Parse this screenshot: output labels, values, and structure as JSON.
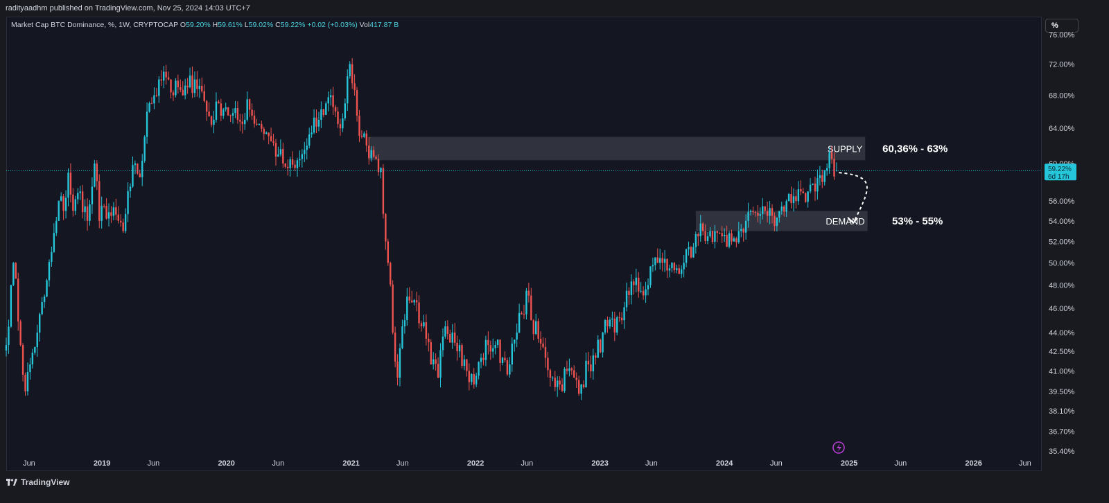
{
  "header": {
    "publisher_line": "radityaadhm published on TradingView.com, Nov 25, 2024 14:03 UTC+7",
    "symbol": "Market Cap BTC Dominance, %, 1W, CRYPTOCAP",
    "open_label": "O",
    "open": "59.20%",
    "high_label": "H",
    "high": "59.61%",
    "low_label": "L",
    "low": "59.02%",
    "close_label": "C",
    "close": "59.22%",
    "change": "+0.02 (+0.03%)",
    "vol_label": "Vol",
    "vol": "417.87 B"
  },
  "scale_button": "%",
  "footer": {
    "logo_text": "TradingView"
  },
  "colors": {
    "up": "#26c6da",
    "down": "#ef5350",
    "background": "#141722",
    "zone": "#3a3d48",
    "price_line": "#26c6da"
  },
  "chart_data": {
    "type": "candlestick",
    "title": "Market Cap BTC Dominance, %, 1W, CRYPTOCAP",
    "y_ticks": [
      "76.00%",
      "72.00%",
      "68.00%",
      "64.00%",
      "60.00%",
      "56.00%",
      "54.00%",
      "52.00%",
      "50.00%",
      "48.00%",
      "46.00%",
      "44.00%",
      "42.50%",
      "41.00%",
      "39.50%",
      "38.10%",
      "36.70%",
      "35.40%"
    ],
    "y_scale": "log",
    "ylim": [
      35.4,
      76.0
    ],
    "x_ticks": [
      {
        "label": "Jun",
        "date": "2018-06-01",
        "bold": false
      },
      {
        "label": "2019",
        "date": "2019-01-01",
        "bold": true
      },
      {
        "label": "Jun",
        "date": "2019-06-01",
        "bold": false
      },
      {
        "label": "2020",
        "date": "2020-01-01",
        "bold": true
      },
      {
        "label": "Jun",
        "date": "2020-06-01",
        "bold": false
      },
      {
        "label": "2021",
        "date": "2021-01-01",
        "bold": true
      },
      {
        "label": "Jun",
        "date": "2021-06-01",
        "bold": false
      },
      {
        "label": "2022",
        "date": "2022-01-01",
        "bold": true
      },
      {
        "label": "Jun",
        "date": "2022-06-01",
        "bold": false
      },
      {
        "label": "2023",
        "date": "2023-01-01",
        "bold": true
      },
      {
        "label": "Jun",
        "date": "2023-06-01",
        "bold": false
      },
      {
        "label": "2024",
        "date": "2024-01-01",
        "bold": true
      },
      {
        "label": "Jun",
        "date": "2024-06-01",
        "bold": false
      },
      {
        "label": "2025",
        "date": "2025-01-01",
        "bold": true
      },
      {
        "label": "Jun",
        "date": "2025-06-01",
        "bold": false
      },
      {
        "label": "2026",
        "date": "2026-01-01",
        "bold": true
      },
      {
        "label": "Jun",
        "date": "2026-06-01",
        "bold": false
      }
    ],
    "xlim": [
      "2018-03-26",
      "2026-07-20"
    ],
    "series": [
      {
        "interval": "1W",
        "points": [
          [
            "2018-03-26",
            43.0
          ],
          [
            "2018-04-09",
            48.0
          ],
          [
            "2018-04-16",
            50.0
          ],
          [
            "2018-05-07",
            43.0
          ],
          [
            "2018-05-21",
            39.5
          ],
          [
            "2018-06-04",
            41.5
          ],
          [
            "2018-06-25",
            44.0
          ],
          [
            "2018-07-16",
            47.0
          ],
          [
            "2018-08-06",
            51.0
          ],
          [
            "2018-08-20",
            54.0
          ],
          [
            "2018-09-03",
            56.5
          ],
          [
            "2018-09-10",
            55.0
          ],
          [
            "2018-09-24",
            59.0
          ],
          [
            "2018-10-08",
            55.0
          ],
          [
            "2018-10-29",
            57.0
          ],
          [
            "2018-11-19",
            54.0
          ],
          [
            "2018-12-03",
            57.5
          ],
          [
            "2018-12-10",
            60.0
          ],
          [
            "2018-12-24",
            54.0
          ],
          [
            "2019-01-07",
            55.5
          ],
          [
            "2019-01-28",
            54.5
          ],
          [
            "2019-02-18",
            54.0
          ],
          [
            "2019-03-04",
            53.0
          ],
          [
            "2019-03-25",
            57.5
          ],
          [
            "2019-04-08",
            60.0
          ],
          [
            "2019-04-22",
            58.5
          ],
          [
            "2019-05-06",
            63.0
          ],
          [
            "2019-05-20",
            67.0
          ],
          [
            "2019-06-03",
            68.0
          ],
          [
            "2019-06-17",
            70.0
          ],
          [
            "2019-07-01",
            71.0
          ],
          [
            "2019-07-15",
            70.0
          ],
          [
            "2019-07-29",
            68.0
          ],
          [
            "2019-08-12",
            69.0
          ],
          [
            "2019-08-26",
            68.0
          ],
          [
            "2019-09-09",
            69.0
          ],
          [
            "2019-09-30",
            70.0
          ],
          [
            "2019-10-21",
            68.5
          ],
          [
            "2019-11-04",
            66.0
          ],
          [
            "2019-11-25",
            65.0
          ],
          [
            "2019-12-09",
            67.0
          ],
          [
            "2019-12-30",
            66.5
          ],
          [
            "2020-01-13",
            65.5
          ],
          [
            "2020-02-03",
            65.0
          ],
          [
            "2020-02-17",
            64.5
          ],
          [
            "2020-03-02",
            67.5
          ],
          [
            "2020-03-16",
            65.5
          ],
          [
            "2020-04-06",
            64.5
          ],
          [
            "2020-04-27",
            63.5
          ],
          [
            "2020-05-11",
            62.5
          ],
          [
            "2020-06-01",
            61.0
          ],
          [
            "2020-06-15",
            60.0
          ],
          [
            "2020-06-29",
            59.5
          ],
          [
            "2020-07-20",
            59.5
          ],
          [
            "2020-08-03",
            60.5
          ],
          [
            "2020-08-24",
            62.0
          ],
          [
            "2020-09-07",
            63.5
          ],
          [
            "2020-09-28",
            65.0
          ],
          [
            "2020-10-19",
            67.0
          ],
          [
            "2020-11-02",
            68.0
          ],
          [
            "2020-11-16",
            66.0
          ],
          [
            "2020-11-30",
            64.0
          ],
          [
            "2020-12-14",
            67.0
          ],
          [
            "2020-12-28",
            72.0
          ],
          [
            "2021-01-04",
            69.5
          ],
          [
            "2021-01-18",
            65.5
          ],
          [
            "2021-02-01",
            63.0
          ],
          [
            "2021-02-15",
            62.0
          ],
          [
            "2021-03-01",
            61.5
          ],
          [
            "2021-03-15",
            60.5
          ],
          [
            "2021-03-29",
            59.5
          ],
          [
            "2021-04-12",
            52.0
          ],
          [
            "2021-04-19",
            50.0
          ],
          [
            "2021-05-03",
            44.0
          ],
          [
            "2021-05-17",
            40.5
          ],
          [
            "2021-05-31",
            44.5
          ],
          [
            "2021-06-14",
            47.0
          ],
          [
            "2021-06-28",
            46.5
          ],
          [
            "2021-07-12",
            46.5
          ],
          [
            "2021-07-26",
            44.5
          ],
          [
            "2021-08-09",
            43.5
          ],
          [
            "2021-08-23",
            41.5
          ],
          [
            "2021-09-13",
            40.5
          ],
          [
            "2021-10-04",
            44.5
          ],
          [
            "2021-10-25",
            44.0
          ],
          [
            "2021-11-15",
            43.0
          ],
          [
            "2021-12-06",
            41.0
          ],
          [
            "2021-12-27",
            40.0
          ],
          [
            "2022-01-17",
            42.0
          ],
          [
            "2022-02-07",
            43.0
          ],
          [
            "2022-02-28",
            43.0
          ],
          [
            "2022-03-21",
            42.0
          ],
          [
            "2022-04-11",
            41.5
          ],
          [
            "2022-05-02",
            44.0
          ],
          [
            "2022-05-16",
            45.5
          ],
          [
            "2022-05-30",
            47.5
          ],
          [
            "2022-06-13",
            45.0
          ],
          [
            "2022-07-04",
            43.5
          ],
          [
            "2022-07-25",
            42.0
          ],
          [
            "2022-08-15",
            40.5
          ],
          [
            "2022-09-05",
            40.0
          ],
          [
            "2022-09-26",
            41.0
          ],
          [
            "2022-10-17",
            40.5
          ],
          [
            "2022-11-07",
            40.0
          ],
          [
            "2022-11-28",
            41.5
          ],
          [
            "2022-12-19",
            42.0
          ],
          [
            "2023-01-09",
            44.0
          ],
          [
            "2023-01-23",
            44.5
          ],
          [
            "2023-02-13",
            44.0
          ],
          [
            "2023-03-06",
            45.0
          ],
          [
            "2023-03-20",
            47.5
          ],
          [
            "2023-04-10",
            48.0
          ],
          [
            "2023-05-01",
            47.5
          ],
          [
            "2023-05-22",
            48.0
          ],
          [
            "2023-06-12",
            50.5
          ],
          [
            "2023-07-03",
            50.0
          ],
          [
            "2023-07-24",
            49.5
          ],
          [
            "2023-08-14",
            49.5
          ],
          [
            "2023-09-04",
            50.0
          ],
          [
            "2023-09-25",
            50.5
          ],
          [
            "2023-10-16",
            52.5
          ],
          [
            "2023-10-30",
            53.0
          ],
          [
            "2023-11-13",
            52.5
          ],
          [
            "2023-12-04",
            53.0
          ],
          [
            "2023-12-25",
            52.5
          ],
          [
            "2024-01-08",
            51.5
          ],
          [
            "2024-01-22",
            52.0
          ],
          [
            "2024-02-12",
            53.0
          ],
          [
            "2024-03-04",
            54.0
          ],
          [
            "2024-03-18",
            55.0
          ],
          [
            "2024-04-08",
            54.5
          ],
          [
            "2024-04-29",
            55.0
          ],
          [
            "2024-05-20",
            54.5
          ],
          [
            "2024-06-10",
            55.0
          ],
          [
            "2024-07-01",
            56.0
          ],
          [
            "2024-07-22",
            56.5
          ],
          [
            "2024-08-12",
            57.0
          ],
          [
            "2024-09-02",
            57.0
          ],
          [
            "2024-09-23",
            57.0
          ],
          [
            "2024-10-14",
            58.0
          ],
          [
            "2024-10-28",
            59.5
          ],
          [
            "2024-11-11",
            60.5
          ],
          [
            "2024-11-25",
            59.22
          ]
        ]
      }
    ],
    "current_price": {
      "value": 59.22,
      "label": "59.22%",
      "countdown": "6d 17h"
    },
    "zones": [
      {
        "name": "SUPPLY",
        "range_label": "60,36% - 63%",
        "low": 60.36,
        "high": 63.0,
        "start": "2021-02-22",
        "end": "2025-02-17"
      },
      {
        "name": "DEMAND",
        "range_label": "53% - 55%",
        "low": 53.0,
        "high": 55.0,
        "start": "2023-10-09",
        "end": "2025-02-24"
      }
    ],
    "arrow": {
      "from": [
        "2024-12-02",
        59.0
      ],
      "to": [
        "2025-01-13",
        53.8
      ],
      "style": "dashed"
    }
  }
}
